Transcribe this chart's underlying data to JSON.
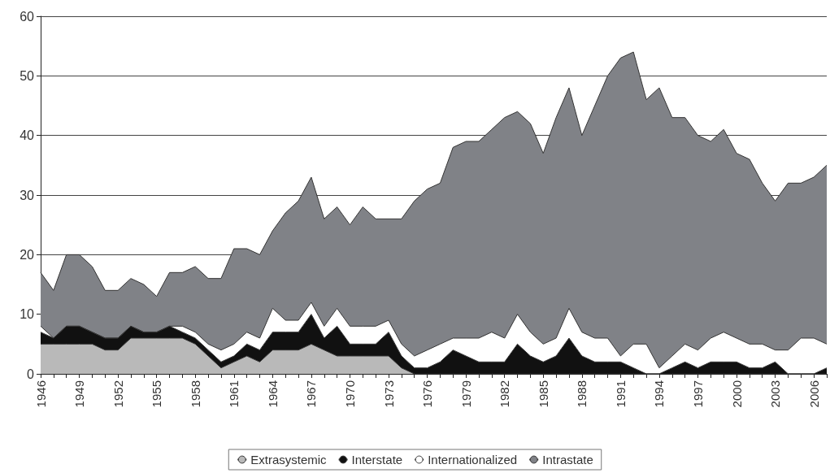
{
  "chart_data": {
    "type": "area",
    "stacked": true,
    "categories": [
      "1946",
      null,
      null,
      "1949",
      null,
      null,
      "1952",
      null,
      null,
      "1955",
      null,
      null,
      "1958",
      null,
      null,
      "1961",
      null,
      null,
      "1964",
      null,
      null,
      "1967",
      null,
      null,
      "1970",
      null,
      null,
      "1973",
      null,
      null,
      "1976",
      null,
      null,
      "1979",
      null,
      null,
      "1982",
      null,
      null,
      "1985",
      null,
      null,
      "1988",
      null,
      null,
      "1991",
      null,
      null,
      "1994",
      null,
      null,
      "1997",
      null,
      null,
      "2000",
      null,
      null,
      "2003",
      null,
      null,
      "2006",
      null
    ],
    "series": [
      {
        "name": "Extrasystemic",
        "color": "#b9b9b9",
        "values": [
          5,
          5,
          5,
          5,
          5,
          4,
          4,
          6,
          6,
          6,
          6,
          6,
          5,
          3,
          1,
          2,
          3,
          2,
          4,
          4,
          4,
          5,
          4,
          3,
          3,
          3,
          3,
          3,
          1,
          0,
          0,
          0,
          0,
          0,
          0,
          0,
          0,
          0,
          0,
          0,
          0,
          0,
          0,
          0,
          0,
          0,
          0,
          0,
          0,
          0,
          0,
          0,
          0,
          0,
          0,
          0,
          0,
          0,
          0,
          0,
          0,
          0
        ]
      },
      {
        "name": "Interstate",
        "color": "#111111",
        "values": [
          2,
          1,
          3,
          3,
          2,
          2,
          2,
          2,
          1,
          1,
          2,
          1,
          1,
          1,
          1,
          1,
          2,
          2,
          3,
          3,
          3,
          5,
          2,
          5,
          2,
          2,
          2,
          4,
          2,
          1,
          1,
          2,
          4,
          3,
          2,
          2,
          2,
          5,
          3,
          2,
          3,
          6,
          3,
          2,
          2,
          2,
          1,
          0,
          0,
          1,
          2,
          1,
          2,
          2,
          2,
          1,
          1,
          2,
          0,
          0,
          0,
          1
        ]
      },
      {
        "name": "Internationalized",
        "color": "#ffffff",
        "values": [
          1,
          0,
          0,
          0,
          0,
          0,
          0,
          0,
          0,
          0,
          0,
          1,
          1,
          1,
          2,
          2,
          2,
          2,
          4,
          2,
          2,
          2,
          2,
          3,
          3,
          3,
          3,
          2,
          2,
          2,
          3,
          3,
          2,
          3,
          4,
          5,
          4,
          5,
          4,
          3,
          3,
          5,
          4,
          4,
          4,
          1,
          4,
          5,
          1,
          2,
          3,
          3,
          4,
          5,
          4,
          4,
          4,
          2,
          4,
          6,
          6,
          4
        ]
      },
      {
        "name": "Intrastate",
        "color": "#808287",
        "values": [
          9,
          8,
          12,
          12,
          11,
          8,
          8,
          8,
          8,
          6,
          9,
          9,
          11,
          11,
          12,
          16,
          14,
          14,
          13,
          18,
          20,
          21,
          18,
          17,
          17,
          20,
          18,
          17,
          21,
          26,
          27,
          27,
          32,
          33,
          33,
          34,
          37,
          34,
          35,
          32,
          37,
          37,
          33,
          39,
          44,
          50,
          49,
          41,
          47,
          40,
          38,
          36,
          33,
          34,
          31,
          31,
          27,
          25,
          28,
          26,
          27,
          30
        ]
      }
    ],
    "ylim": [
      0,
      60
    ],
    "yticks": [
      0,
      10,
      20,
      30,
      40,
      50,
      60
    ],
    "grid": "y",
    "legend": "bottom"
  }
}
